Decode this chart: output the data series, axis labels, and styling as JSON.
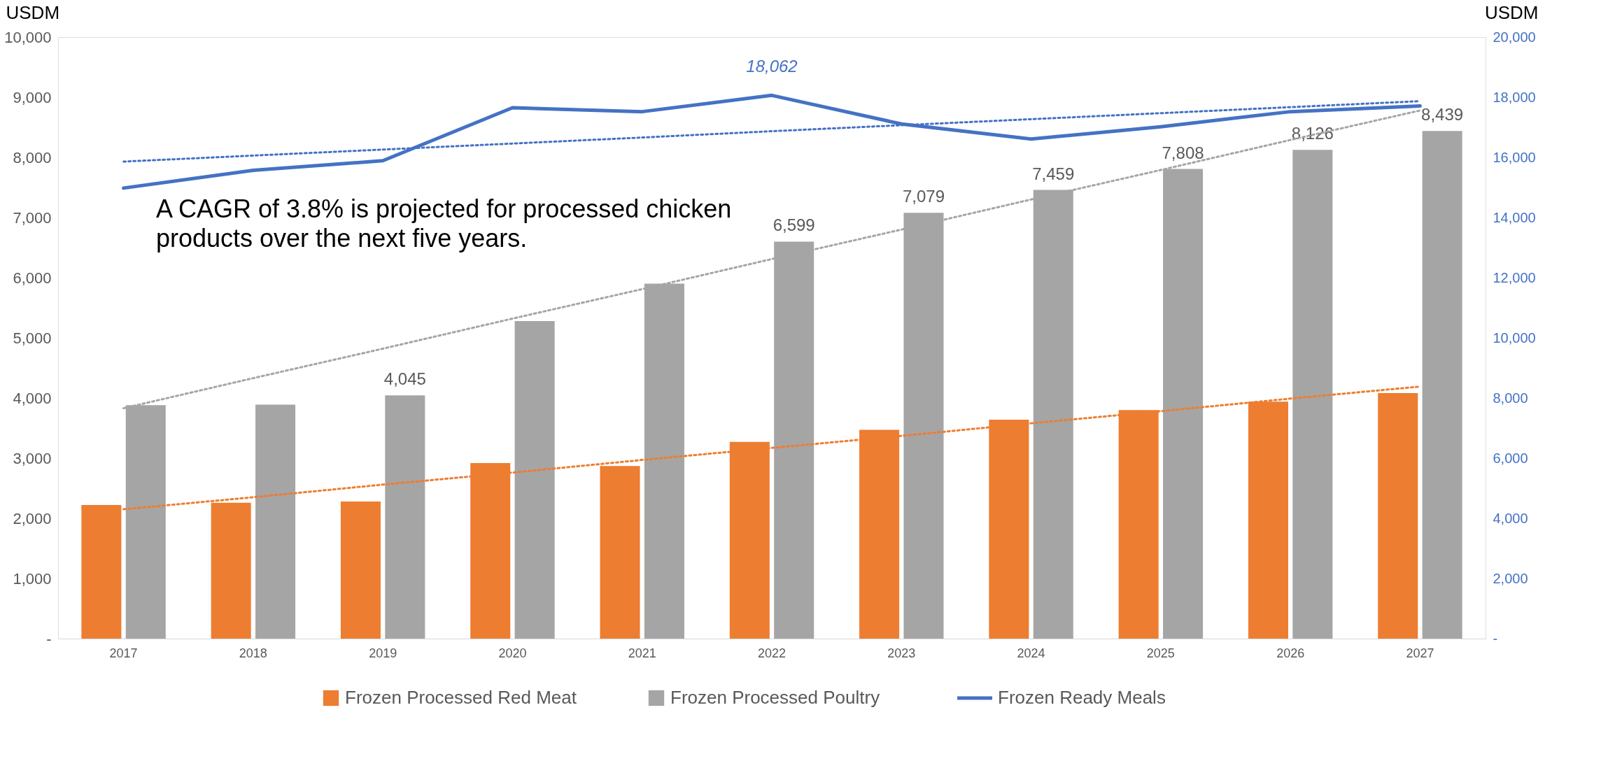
{
  "chart_data": {
    "type": "bar",
    "ylabel": "USDM",
    "y2label": "USDM",
    "categories": [
      "2017",
      "2018",
      "2019",
      "2020",
      "2021",
      "2022",
      "2023",
      "2024",
      "2025",
      "2026",
      "2027"
    ],
    "series": [
      {
        "name": "Frozen Processed Red Meat",
        "color": "#ed7d31",
        "values": [
          2220,
          2260,
          2280,
          2920,
          2870,
          3270,
          3470,
          3640,
          3800,
          3940,
          4080
        ]
      },
      {
        "name": "Frozen Processed Poultry",
        "color": "#a5a5a5",
        "values": [
          3880,
          3890,
          4045,
          5280,
          5900,
          6599,
          7079,
          7459,
          7808,
          8126,
          8439
        ],
        "value_labels": [
          null,
          null,
          "4,045",
          null,
          null,
          "6,599",
          "7,079",
          "7,459",
          "7,808",
          "8,126",
          "8,439"
        ]
      },
      {
        "name": "Frozen Ready Meals",
        "type": "line",
        "line_style": "solid",
        "axis": "y2",
        "color": "#4472c4",
        "values": [
          14980,
          15570,
          15890,
          17650,
          17520,
          18062,
          17110,
          16610,
          17020,
          17520,
          17710
        ],
        "value_labels": [
          null,
          null,
          null,
          null,
          null,
          "18,062",
          null,
          null,
          null,
          null,
          null
        ]
      },
      {
        "type": "line",
        "color": "#ed7d31",
        "line_style": "dotted",
        "values": [
          2150,
          2350,
          2560,
          2760,
          2970,
          3170,
          3370,
          3580,
          3780,
          3990,
          4190
        ]
      },
      {
        "type": "line",
        "color": "#a5a5a5",
        "line_style": "dotted",
        "values": [
          3830,
          4330,
          4820,
          5320,
          5810,
          6310,
          6800,
          7300,
          7790,
          8290,
          8780
        ]
      },
      {
        "type": "line",
        "axis": "y2",
        "color": "#4472c4",
        "line_style": "dotted",
        "values": [
          15860,
          16060,
          16260,
          16460,
          16660,
          16870,
          17070,
          17270,
          17470,
          17670,
          17870
        ]
      }
    ],
    "ylim": [
      0,
      10000
    ],
    "yticks": [
      {
        "value": 0,
        "label": "-"
      },
      {
        "value": 1000,
        "label": "1,000"
      },
      {
        "value": 2000,
        "label": "2,000"
      },
      {
        "value": 3000,
        "label": "3,000"
      },
      {
        "value": 4000,
        "label": "4,000"
      },
      {
        "value": 5000,
        "label": "5,000"
      },
      {
        "value": 6000,
        "label": "6,000"
      },
      {
        "value": 7000,
        "label": "7,000"
      },
      {
        "value": 8000,
        "label": "8,000"
      },
      {
        "value": 9000,
        "label": "9,000"
      },
      {
        "value": 10000,
        "label": "10,000"
      }
    ],
    "y2lim": [
      0,
      20000
    ],
    "y2ticks": [
      {
        "value": 0,
        "label": "-"
      },
      {
        "value": 2000,
        "label": "2,000"
      },
      {
        "value": 4000,
        "label": "4,000"
      },
      {
        "value": 6000,
        "label": "6,000"
      },
      {
        "value": 8000,
        "label": "8,000"
      },
      {
        "value": 10000,
        "label": "10,000"
      },
      {
        "value": 12000,
        "label": "12,000"
      },
      {
        "value": 14000,
        "label": "14,000"
      },
      {
        "value": 16000,
        "label": "16,000"
      },
      {
        "value": 18000,
        "label": "18,000"
      },
      {
        "value": 20000,
        "label": "20,000"
      }
    ],
    "annotations": [
      "A CAGR of 3.8% is projected for processed chicken products over the next five years."
    ],
    "legend": "bottom",
    "grid": false
  }
}
